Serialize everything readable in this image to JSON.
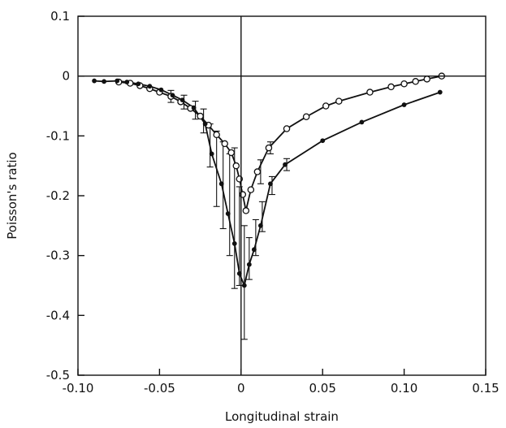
{
  "chart_data": {
    "type": "line",
    "title": "",
    "xlabel": "Longitudinal strain",
    "ylabel": "Poisson's ratio",
    "xlim": [
      -0.1,
      0.15
    ],
    "ylim": [
      -0.5,
      0.1
    ],
    "x_ticks": [
      -0.1,
      -0.05,
      0,
      0.05,
      0.1,
      0.15
    ],
    "x_tick_labels": [
      "-0.10",
      "-0.05",
      "0",
      "0.05",
      "0.10",
      "0.15"
    ],
    "y_ticks": [
      0.1,
      0,
      -0.1,
      -0.2,
      -0.3,
      -0.4,
      -0.5
    ],
    "y_tick_labels": [
      "0.1",
      "0",
      "-0.1",
      "-0.2",
      "-0.3",
      "-0.4",
      "-0.5"
    ],
    "reference_lines": {
      "x": 0,
      "y": 0
    },
    "grid": false,
    "series": [
      {
        "marker": "open-circle",
        "points": [
          {
            "x": -0.075,
            "y": -0.01
          },
          {
            "x": -0.068,
            "y": -0.012
          },
          {
            "x": -0.062,
            "y": -0.016
          },
          {
            "x": -0.056,
            "y": -0.021
          },
          {
            "x": -0.05,
            "y": -0.027
          },
          {
            "x": -0.043,
            "y": -0.034
          },
          {
            "x": -0.037,
            "y": -0.043
          },
          {
            "x": -0.031,
            "y": -0.054
          },
          {
            "x": -0.025,
            "y": -0.067
          },
          {
            "x": -0.02,
            "y": -0.082
          },
          {
            "x": -0.015,
            "y": -0.098
          },
          {
            "x": -0.01,
            "y": -0.113
          },
          {
            "x": -0.006,
            "y": -0.128
          },
          {
            "x": -0.003,
            "y": -0.15
          },
          {
            "x": -0.001,
            "y": -0.172
          },
          {
            "x": 0.001,
            "y": -0.198
          },
          {
            "x": 0.003,
            "y": -0.225
          },
          {
            "x": 0.006,
            "y": -0.19
          },
          {
            "x": 0.01,
            "y": -0.16
          },
          {
            "x": 0.017,
            "y": -0.12
          },
          {
            "x": 0.028,
            "y": -0.088
          },
          {
            "x": 0.04,
            "y": -0.068
          },
          {
            "x": 0.052,
            "y": -0.05
          },
          {
            "x": 0.06,
            "y": -0.042
          },
          {
            "x": 0.079,
            "y": -0.027
          },
          {
            "x": 0.092,
            "y": -0.018
          },
          {
            "x": 0.1,
            "y": -0.013
          },
          {
            "x": 0.107,
            "y": -0.009
          },
          {
            "x": 0.114,
            "y": -0.005
          },
          {
            "x": 0.123,
            "y": 0.0
          }
        ]
      },
      {
        "marker": "filled-dot",
        "points": [
          {
            "x": -0.09,
            "y": -0.008
          },
          {
            "x": -0.084,
            "y": -0.009
          },
          {
            "x": -0.076,
            "y": -0.008
          },
          {
            "x": -0.07,
            "y": -0.01
          },
          {
            "x": -0.063,
            "y": -0.013
          },
          {
            "x": -0.056,
            "y": -0.017
          },
          {
            "x": -0.049,
            "y": -0.023
          },
          {
            "x": -0.042,
            "y": -0.032
          },
          {
            "x": -0.036,
            "y": -0.04
          },
          {
            "x": -0.029,
            "y": -0.053
          },
          {
            "x": -0.022,
            "y": -0.08
          },
          {
            "x": -0.018,
            "y": -0.13
          },
          {
            "x": -0.012,
            "y": -0.18
          },
          {
            "x": -0.008,
            "y": -0.23
          },
          {
            "x": -0.004,
            "y": -0.28
          },
          {
            "x": -0.001,
            "y": -0.33
          },
          {
            "x": 0.002,
            "y": -0.35
          },
          {
            "x": 0.005,
            "y": -0.315
          },
          {
            "x": 0.008,
            "y": -0.29
          },
          {
            "x": 0.012,
            "y": -0.25
          },
          {
            "x": 0.018,
            "y": -0.18
          },
          {
            "x": 0.027,
            "y": -0.148
          },
          {
            "x": 0.05,
            "y": -0.108
          },
          {
            "x": 0.074,
            "y": -0.077
          },
          {
            "x": 0.1,
            "y": -0.048
          },
          {
            "x": 0.122,
            "y": -0.027
          }
        ]
      }
    ],
    "error_bars": [
      {
        "x": -0.043,
        "ylow": -0.044,
        "yhigh": -0.024
      },
      {
        "x": -0.035,
        "ylow": -0.055,
        "yhigh": -0.032
      },
      {
        "x": -0.028,
        "ylow": -0.072,
        "yhigh": -0.042
      },
      {
        "x": -0.023,
        "ylow": -0.095,
        "yhigh": -0.055
      },
      {
        "x": -0.019,
        "ylow": -0.152,
        "yhigh": -0.08
      },
      {
        "x": -0.015,
        "ylow": -0.218,
        "yhigh": -0.092
      },
      {
        "x": -0.011,
        "ylow": -0.255,
        "yhigh": -0.11
      },
      {
        "x": -0.007,
        "ylow": -0.3,
        "yhigh": -0.13
      },
      {
        "x": -0.004,
        "ylow": -0.355,
        "yhigh": -0.12
      },
      {
        "x": -0.001,
        "ylow": -0.35,
        "yhigh": -0.185
      },
      {
        "x": 0.002,
        "ylow": -0.44,
        "yhigh": -0.25
      },
      {
        "x": 0.005,
        "ylow": -0.34,
        "yhigh": -0.27
      },
      {
        "x": 0.009,
        "ylow": -0.3,
        "yhigh": -0.24
      },
      {
        "x": 0.013,
        "ylow": -0.26,
        "yhigh": -0.21
      },
      {
        "x": 0.019,
        "ylow": -0.198,
        "yhigh": -0.168
      },
      {
        "x": 0.028,
        "ylow": -0.158,
        "yhigh": -0.138
      },
      {
        "x": 0.012,
        "ylow": -0.18,
        "yhigh": -0.14
      },
      {
        "x": 0.018,
        "ylow": -0.13,
        "yhigh": -0.11
      }
    ]
  }
}
